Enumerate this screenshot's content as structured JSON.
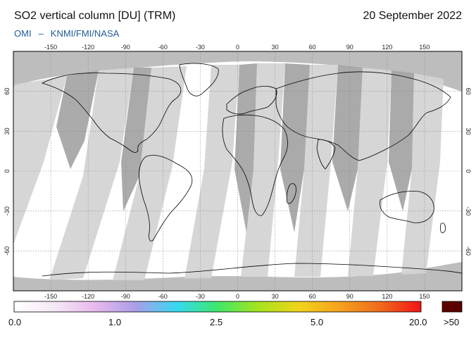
{
  "title": "SO2 vertical column [DU] (TRM)",
  "date": "20 September 2022",
  "credit": {
    "instrument": "OMI",
    "separator": "–",
    "institutes": "KNMI/FMI/NASA"
  },
  "map": {
    "lon_ticks": [
      -150,
      -120,
      -90,
      -60,
      -30,
      0,
      30,
      60,
      90,
      120,
      150
    ],
    "lat_ticks": [
      60,
      30,
      0,
      -30,
      -60
    ],
    "colors": {
      "background": "#ffffff",
      "swath_light": "#d4d4d4",
      "swath_dark": "#a6a6a6",
      "polar_fill": "#bdbdbd",
      "coastline": "#000000",
      "grid": "#8a8a8a"
    }
  },
  "colorbar": {
    "labels": [
      "0.0",
      "1.0",
      "2.5",
      "5.0",
      "20.0"
    ],
    "overflow_label": ">50",
    "overflow_color": "#5a0000",
    "stops": [
      "#ffffff",
      "#f6e8f6",
      "#e9b8ee",
      "#a99ee8",
      "#36d8f2",
      "#3ee86a",
      "#a4e41e",
      "#f1d41b",
      "#f4a21e",
      "#ef6a1e",
      "#f21515"
    ]
  }
}
